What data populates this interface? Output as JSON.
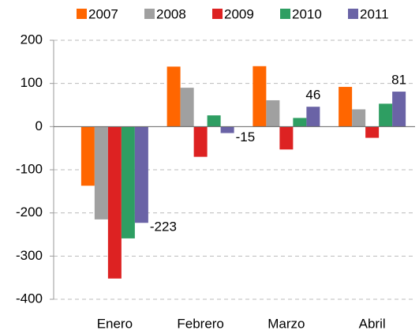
{
  "chart_data": {
    "type": "bar",
    "categories": [
      "Enero",
      "Febrero",
      "Marzo",
      "Abril"
    ],
    "series": [
      {
        "name": "2007",
        "color": "#ff6600",
        "values": [
          -137,
          139,
          140,
          92
        ]
      },
      {
        "name": "2008",
        "color": "#a0a0a0",
        "values": [
          -215,
          90,
          61,
          40
        ]
      },
      {
        "name": "2009",
        "color": "#dd2222",
        "values": [
          -352,
          -70,
          -53,
          -26
        ]
      },
      {
        "name": "2010",
        "color": "#2e9e62",
        "values": [
          -259,
          26,
          20,
          53
        ]
      },
      {
        "name": "2011",
        "color": "#6a63a6",
        "values": [
          -223,
          -15,
          46,
          81
        ],
        "data_labels": true
      }
    ],
    "ylim": [
      -400,
      200
    ],
    "yticks": [
      -400,
      -300,
      -200,
      -100,
      0,
      100,
      200
    ],
    "grid": true,
    "legend": "top"
  }
}
